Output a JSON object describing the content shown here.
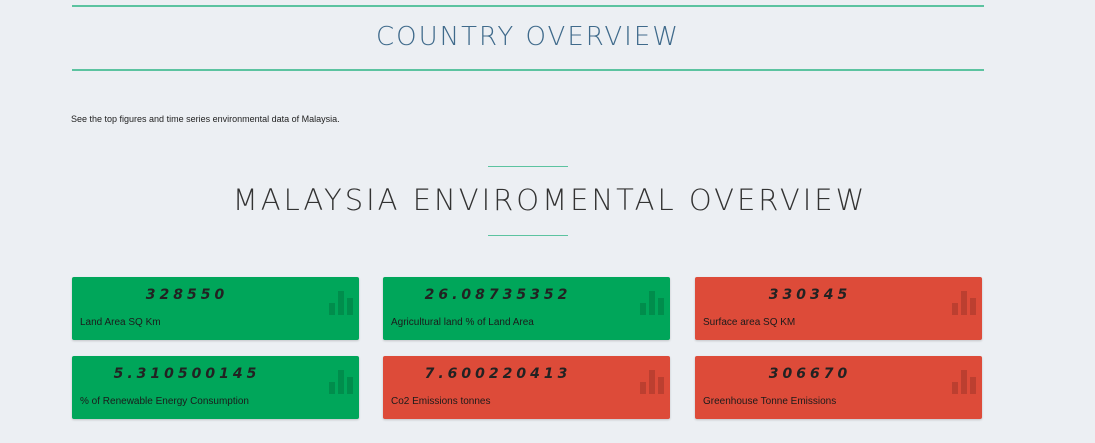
{
  "header": {
    "title": "COUNTRY OVERVIEW"
  },
  "intro": {
    "text": "See the top figures and time series environmental data of Malaysia."
  },
  "section": {
    "title": "MALAYSIA ENVIROMENTAL OVERVIEW"
  },
  "colors": {
    "green": "#00a65a",
    "red": "#dd4b39",
    "accent_line": "#5cc3a0",
    "title_blue": "#3f6a8b"
  },
  "cards": [
    {
      "value": "328550",
      "label": "Land Area SQ Km",
      "status": "green",
      "icon": "bar-chart-icon"
    },
    {
      "value": "26.08735352",
      "label": "Agricultural land % of Land Area",
      "status": "green",
      "icon": "bar-chart-icon"
    },
    {
      "value": "330345",
      "label": "Surface area SQ KM",
      "status": "red",
      "icon": "bar-chart-icon"
    },
    {
      "value": "5.310500145",
      "label": "% of Renewable Energy Consumption",
      "status": "green",
      "icon": "bar-chart-icon"
    },
    {
      "value": "7.600220413",
      "label": "Co2 Emissions tonnes",
      "status": "red",
      "icon": "bar-chart-icon"
    },
    {
      "value": "306670",
      "label": "Greenhouse Tonne Emissions",
      "status": "red",
      "icon": "bar-chart-icon"
    }
  ]
}
